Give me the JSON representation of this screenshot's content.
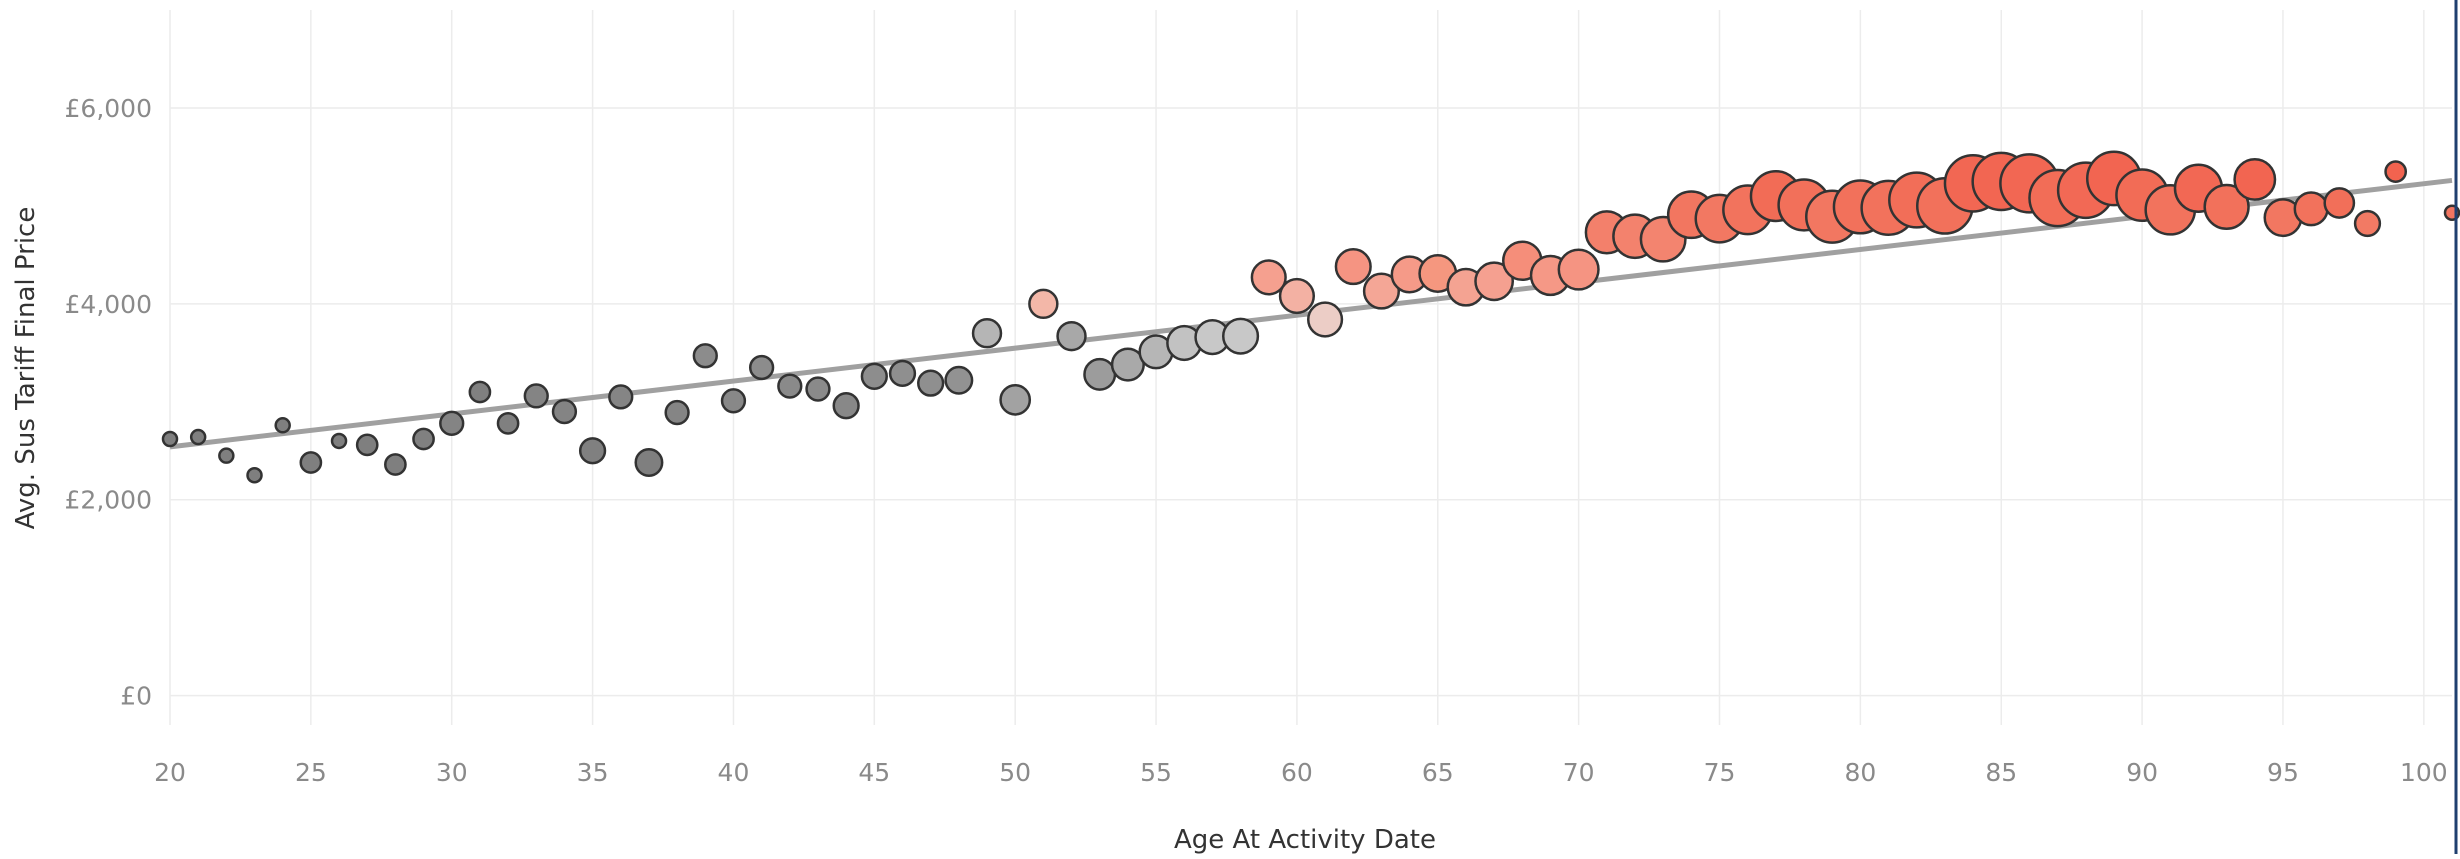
{
  "chart_data": {
    "type": "scatter",
    "xlabel": "Age At Activity Date",
    "ylabel": "Avg. Sus Tariff Final Price",
    "xlim": [
      20,
      101
    ],
    "ylim": [
      -300,
      7000
    ],
    "x_ticks": [
      {
        "value": 20,
        "label": "20"
      },
      {
        "value": 25,
        "label": "25"
      },
      {
        "value": 30,
        "label": "30"
      },
      {
        "value": 35,
        "label": "35"
      },
      {
        "value": 40,
        "label": "40"
      },
      {
        "value": 45,
        "label": "45"
      },
      {
        "value": 50,
        "label": "50"
      },
      {
        "value": 55,
        "label": "55"
      },
      {
        "value": 60,
        "label": "60"
      },
      {
        "value": 65,
        "label": "65"
      },
      {
        "value": 70,
        "label": "70"
      },
      {
        "value": 75,
        "label": "75"
      },
      {
        "value": 80,
        "label": "80"
      },
      {
        "value": 85,
        "label": "85"
      },
      {
        "value": 90,
        "label": "90"
      },
      {
        "value": 95,
        "label": "95"
      },
      {
        "value": 100,
        "label": "100"
      }
    ],
    "y_ticks": [
      {
        "value": 0,
        "label": "£0"
      },
      {
        "value": 2000,
        "label": "£2,000"
      },
      {
        "value": 4000,
        "label": "£4,000"
      },
      {
        "value": 6000,
        "label": "£6,000"
      }
    ],
    "grid": true,
    "trend_line": {
      "x": [
        20,
        101
      ],
      "y": [
        2540,
        5260
      ],
      "color": "#a0a0a0"
    },
    "size_range": [
      1,
      26
    ],
    "color_scale": {
      "low": "#7f7f7f",
      "mid": "#d4d4d4",
      "high": "#f26b56"
    },
    "points": [
      {
        "x": 20,
        "y": 2620,
        "size": 1,
        "color": "#7f7f7f"
      },
      {
        "x": 21,
        "y": 2640,
        "size": 1,
        "color": "#7f7f7f"
      },
      {
        "x": 22,
        "y": 2450,
        "size": 1,
        "color": "#7f7f7f"
      },
      {
        "x": 23,
        "y": 2250,
        "size": 1,
        "color": "#7f7f7f"
      },
      {
        "x": 24,
        "y": 2760,
        "size": 1,
        "color": "#7f7f7f"
      },
      {
        "x": 25,
        "y": 2380,
        "size": 1.5,
        "color": "#7f7f7f"
      },
      {
        "x": 26,
        "y": 2600,
        "size": 1,
        "color": "#7f7f7f"
      },
      {
        "x": 27,
        "y": 2560,
        "size": 1.5,
        "color": "#7f7f7f"
      },
      {
        "x": 28,
        "y": 2360,
        "size": 1.5,
        "color": "#7f7f7f"
      },
      {
        "x": 29,
        "y": 2620,
        "size": 1.5,
        "color": "#808080"
      },
      {
        "x": 30,
        "y": 2780,
        "size": 2,
        "color": "#848484"
      },
      {
        "x": 31,
        "y": 3100,
        "size": 1.5,
        "color": "#808080"
      },
      {
        "x": 32,
        "y": 2780,
        "size": 1.5,
        "color": "#808080"
      },
      {
        "x": 33,
        "y": 3060,
        "size": 2,
        "color": "#848484"
      },
      {
        "x": 34,
        "y": 2900,
        "size": 2,
        "color": "#848484"
      },
      {
        "x": 35,
        "y": 2500,
        "size": 2.5,
        "color": "#808080"
      },
      {
        "x": 36,
        "y": 3050,
        "size": 2,
        "color": "#858585"
      },
      {
        "x": 37,
        "y": 2380,
        "size": 3,
        "color": "#7f7f7f"
      },
      {
        "x": 38,
        "y": 2890,
        "size": 2,
        "color": "#858585"
      },
      {
        "x": 39,
        "y": 3470,
        "size": 2,
        "color": "#8c8c8c"
      },
      {
        "x": 40,
        "y": 3010,
        "size": 2,
        "color": "#888888"
      },
      {
        "x": 41,
        "y": 3350,
        "size": 2,
        "color": "#8c8c8c"
      },
      {
        "x": 42,
        "y": 3160,
        "size": 2,
        "color": "#8a8a8a"
      },
      {
        "x": 43,
        "y": 3130,
        "size": 2,
        "color": "#8a8a8a"
      },
      {
        "x": 44,
        "y": 2960,
        "size": 2.5,
        "color": "#888888"
      },
      {
        "x": 45,
        "y": 3260,
        "size": 2.5,
        "color": "#8d8d8d"
      },
      {
        "x": 46,
        "y": 3290,
        "size": 2.5,
        "color": "#8f8f8f"
      },
      {
        "x": 47,
        "y": 3190,
        "size": 2.5,
        "color": "#8f8f8f"
      },
      {
        "x": 48,
        "y": 3220,
        "size": 3,
        "color": "#929292"
      },
      {
        "x": 49,
        "y": 3700,
        "size": 3.5,
        "color": "#b5b5b5"
      },
      {
        "x": 50,
        "y": 3020,
        "size": 4,
        "color": "#a2a2a2"
      },
      {
        "x": 51,
        "y": 4000,
        "size": 3.5,
        "color": "#f3b7a8"
      },
      {
        "x": 52,
        "y": 3670,
        "size": 3.5,
        "color": "#a8a8a8"
      },
      {
        "x": 53,
        "y": 3280,
        "size": 4.5,
        "color": "#9c9c9c"
      },
      {
        "x": 54,
        "y": 3380,
        "size": 5,
        "color": "#a9a9a9"
      },
      {
        "x": 55,
        "y": 3510,
        "size": 5.5,
        "color": "#b6b6b6"
      },
      {
        "x": 56,
        "y": 3600,
        "size": 6,
        "color": "#c2c2c2"
      },
      {
        "x": 57,
        "y": 3660,
        "size": 6,
        "color": "#c8c8c8"
      },
      {
        "x": 58,
        "y": 3670,
        "size": 6.5,
        "color": "#c8c8c8"
      },
      {
        "x": 59,
        "y": 4270,
        "size": 6,
        "color": "#f5a08f"
      },
      {
        "x": 60,
        "y": 4080,
        "size": 6,
        "color": "#f3b1a3"
      },
      {
        "x": 61,
        "y": 3840,
        "size": 6,
        "color": "#eccdc6"
      },
      {
        "x": 62,
        "y": 4380,
        "size": 6.5,
        "color": "#f59482"
      },
      {
        "x": 63,
        "y": 4130,
        "size": 6.5,
        "color": "#f4a696"
      },
      {
        "x": 64,
        "y": 4300,
        "size": 7,
        "color": "#f59a88"
      },
      {
        "x": 65,
        "y": 4310,
        "size": 7.5,
        "color": "#f5977f"
      },
      {
        "x": 66,
        "y": 4170,
        "size": 7.5,
        "color": "#f4a392"
      },
      {
        "x": 67,
        "y": 4230,
        "size": 8,
        "color": "#f5a090"
      },
      {
        "x": 68,
        "y": 4440,
        "size": 8.5,
        "color": "#f58e7a"
      },
      {
        "x": 69,
        "y": 4290,
        "size": 9,
        "color": "#f59886"
      },
      {
        "x": 70,
        "y": 4350,
        "size": 9.5,
        "color": "#f59482"
      },
      {
        "x": 71,
        "y": 4730,
        "size": 11,
        "color": "#f3806b"
      },
      {
        "x": 72,
        "y": 4690,
        "size": 12,
        "color": "#f3826d"
      },
      {
        "x": 73,
        "y": 4660,
        "size": 13,
        "color": "#f3846f"
      },
      {
        "x": 74,
        "y": 4910,
        "size": 14.5,
        "color": "#f27660"
      },
      {
        "x": 75,
        "y": 4870,
        "size": 15.5,
        "color": "#f27862"
      },
      {
        "x": 76,
        "y": 4960,
        "size": 16.5,
        "color": "#f2735d"
      },
      {
        "x": 77,
        "y": 5100,
        "size": 17.5,
        "color": "#f26c56"
      },
      {
        "x": 78,
        "y": 5010,
        "size": 18.5,
        "color": "#f2705a"
      },
      {
        "x": 79,
        "y": 4890,
        "size": 19.5,
        "color": "#f27761"
      },
      {
        "x": 80,
        "y": 4990,
        "size": 20.5,
        "color": "#f2715b"
      },
      {
        "x": 81,
        "y": 4980,
        "size": 21.5,
        "color": "#f2725c"
      },
      {
        "x": 82,
        "y": 5060,
        "size": 22.5,
        "color": "#f26e58"
      },
      {
        "x": 83,
        "y": 5000,
        "size": 23,
        "color": "#f2715b"
      },
      {
        "x": 84,
        "y": 5230,
        "size": 24,
        "color": "#f26753"
      },
      {
        "x": 85,
        "y": 5250,
        "size": 25,
        "color": "#f26652"
      },
      {
        "x": 86,
        "y": 5230,
        "size": 26,
        "color": "#f26753"
      },
      {
        "x": 87,
        "y": 5080,
        "size": 24,
        "color": "#f26d57"
      },
      {
        "x": 88,
        "y": 5160,
        "size": 23,
        "color": "#f26955"
      },
      {
        "x": 89,
        "y": 5280,
        "size": 21,
        "color": "#f26551"
      },
      {
        "x": 90,
        "y": 5110,
        "size": 19,
        "color": "#f26c56"
      },
      {
        "x": 91,
        "y": 4960,
        "size": 17,
        "color": "#f2735d"
      },
      {
        "x": 92,
        "y": 5180,
        "size": 15,
        "color": "#f26854"
      },
      {
        "x": 93,
        "y": 4990,
        "size": 12.5,
        "color": "#f2715b"
      },
      {
        "x": 94,
        "y": 5270,
        "size": 10,
        "color": "#f26551"
      },
      {
        "x": 95,
        "y": 4880,
        "size": 7.5,
        "color": "#f27761"
      },
      {
        "x": 96,
        "y": 4970,
        "size": 5.5,
        "color": "#f2725c"
      },
      {
        "x": 97,
        "y": 5030,
        "size": 4,
        "color": "#f26f59"
      },
      {
        "x": 98,
        "y": 4820,
        "size": 2.5,
        "color": "#f27a64"
      },
      {
        "x": 99,
        "y": 5350,
        "size": 1.5,
        "color": "#f2634f"
      },
      {
        "x": 101,
        "y": 4930,
        "size": 1,
        "color": "#f27560"
      }
    ]
  }
}
